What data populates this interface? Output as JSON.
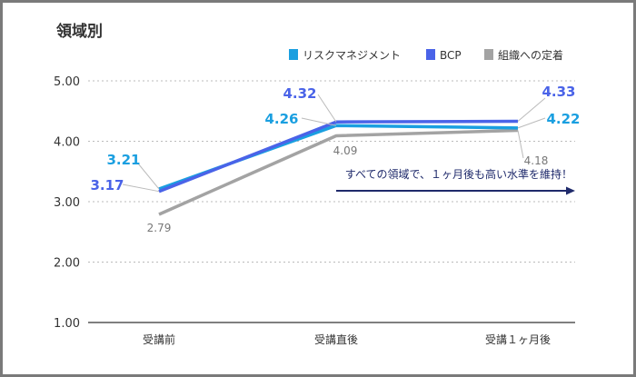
{
  "chart_data": {
    "type": "line",
    "title": "領域別",
    "categories": [
      "受講前",
      "受講直後",
      "受講１ヶ月後"
    ],
    "series": [
      {
        "name": "リスクマネジメント",
        "color": "#1a9fe0",
        "values": [
          3.21,
          4.26,
          4.22
        ]
      },
      {
        "name": "BCP",
        "color": "#4a63e8",
        "values": [
          3.17,
          4.32,
          4.33
        ]
      },
      {
        "name": "組織への定着",
        "color": "#a3a3a3",
        "values": [
          2.79,
          4.09,
          4.18
        ]
      }
    ],
    "yticks": [
      "1.00",
      "2.00",
      "3.00",
      "4.00",
      "5.00"
    ],
    "ylim": [
      1,
      5
    ],
    "grid": true,
    "legend": "top-right",
    "annotation": "すべての領域で、１ヶ月後も高い水準を維持！",
    "annotation_color": "#1f2a6b"
  }
}
